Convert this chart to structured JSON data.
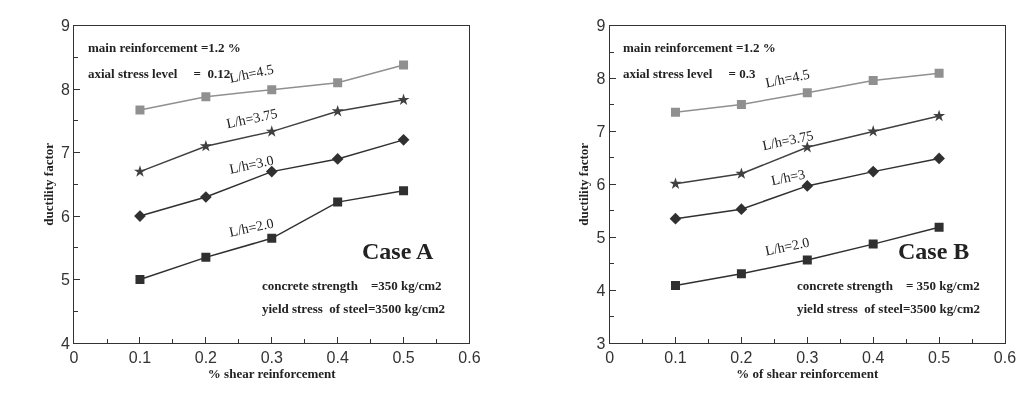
{
  "chart_data": [
    {
      "type": "line",
      "xlabel": "% shear reinforcement",
      "ylabel": "ductility factor",
      "xlim": [
        0,
        0.6
      ],
      "xticks": [
        0,
        0.1,
        0.2,
        0.3,
        0.4,
        0.5,
        0.6
      ],
      "ylim": [
        4,
        9
      ],
      "yticks": [
        4,
        5,
        6,
        7,
        8,
        9
      ],
      "legend": false,
      "line_style": "solid",
      "x": [
        0.1,
        0.2,
        0.3,
        0.4,
        0.5
      ],
      "series": [
        {
          "name": "L/h=4.5",
          "color": "#909090",
          "marker": "square",
          "values": [
            7.67,
            7.88,
            7.99,
            8.1,
            8.38
          ]
        },
        {
          "name": "L/h=3.75",
          "color": "#404040",
          "marker": "star",
          "values": [
            6.7,
            7.1,
            7.33,
            7.65,
            7.83
          ]
        },
        {
          "name": "L/h=3.0",
          "color": "#303030",
          "marker": "diamond",
          "values": [
            6.0,
            6.3,
            6.7,
            6.9,
            7.2
          ]
        },
        {
          "name": "L/h=2.0",
          "color": "#303030",
          "marker": "square",
          "values": [
            5.0,
            5.35,
            5.65,
            6.22,
            6.4
          ]
        }
      ],
      "annotations": [
        "main reinforcement =1.2 %",
        "axial stress level     =  0.12",
        "Case A",
        "concrete strength    =350 kg/cm2",
        "yield stress  of steel=3500 kg/cm2"
      ]
    },
    {
      "type": "line",
      "xlabel": "% of shear reinforcement",
      "ylabel": "ductility factor",
      "xlim": [
        0,
        0.6
      ],
      "xticks": [
        0,
        0.1,
        0.2,
        0.3,
        0.4,
        0.5,
        0.6
      ],
      "ylim": [
        3,
        9
      ],
      "yticks": [
        3,
        4,
        5,
        6,
        7,
        8,
        9
      ],
      "legend": false,
      "line_style": "solid",
      "x": [
        0.1,
        0.2,
        0.3,
        0.4,
        0.5
      ],
      "series": [
        {
          "name": "L/h=4.5",
          "color": "#909090",
          "marker": "square",
          "values": [
            7.36,
            7.51,
            7.73,
            7.96,
            8.1
          ]
        },
        {
          "name": "L/h=3.75",
          "color": "#404040",
          "marker": "star",
          "values": [
            6.01,
            6.2,
            6.7,
            7.0,
            7.29
          ]
        },
        {
          "name": "L/h=3",
          "color": "#303030",
          "marker": "diamond",
          "values": [
            5.35,
            5.53,
            5.97,
            6.24,
            6.49
          ]
        },
        {
          "name": "L/h=2.0",
          "color": "#303030",
          "marker": "square",
          "values": [
            4.09,
            4.31,
            4.57,
            4.87,
            5.19
          ]
        }
      ],
      "annotations": [
        "main reinforcement =1.2 %",
        "axial stress level     = 0.3",
        "Case B",
        "concrete strength    = 350 kg/cm2",
        "yield stress  of steel=3500 kg/cm2"
      ]
    }
  ]
}
